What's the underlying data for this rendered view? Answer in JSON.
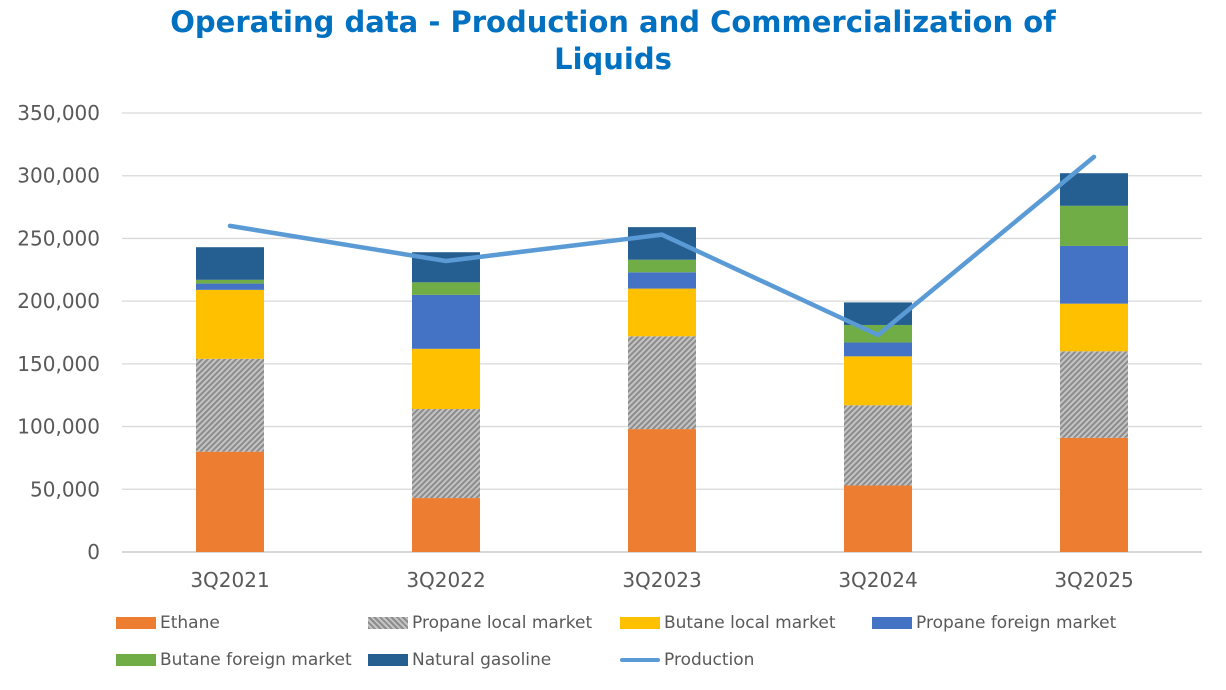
{
  "chart_data": {
    "type": "bar",
    "stacked": true,
    "title_line1": "Operating data - Production and Commercialization of",
    "title_line2": "Liquids",
    "categories": [
      "3Q2021",
      "3Q2022",
      "3Q2023",
      "3Q2024",
      "3Q2025"
    ],
    "ylim": [
      0,
      350000
    ],
    "yticks": [
      "0",
      "50,000",
      "100,000",
      "150,000",
      "200,000",
      "250,000",
      "300,000",
      "350,000"
    ],
    "ytick_values": [
      0,
      50000,
      100000,
      150000,
      200000,
      250000,
      300000,
      350000
    ],
    "grid": true,
    "legend_position": "bottom",
    "series": [
      {
        "name": "Ethane",
        "color": "#ed7d31",
        "pattern": "solid",
        "values": [
          80000,
          43000,
          98000,
          53000,
          91000
        ]
      },
      {
        "name": "Propane local market",
        "color": "#a5a5a5",
        "pattern": "hatch",
        "values": [
          74000,
          71000,
          74000,
          64000,
          69000
        ]
      },
      {
        "name": "Butane local market",
        "color": "#ffc000",
        "pattern": "solid",
        "values": [
          55000,
          48000,
          38000,
          39000,
          38000
        ]
      },
      {
        "name": "Propane foreign market",
        "color": "#4472c4",
        "pattern": "solid",
        "values": [
          5000,
          43000,
          13000,
          11000,
          46000
        ]
      },
      {
        "name": "Butane foreign market",
        "color": "#70ad47",
        "pattern": "solid",
        "values": [
          3000,
          10000,
          10000,
          14000,
          32000
        ]
      },
      {
        "name": "Natural gasoline",
        "color": "#255e91",
        "pattern": "solid",
        "values": [
          26000,
          24000,
          26000,
          18000,
          26000
        ]
      }
    ],
    "line_series": {
      "name": "Production",
      "color": "#5b9bd5",
      "values": [
        260000,
        232000,
        253000,
        173000,
        315000
      ]
    }
  }
}
